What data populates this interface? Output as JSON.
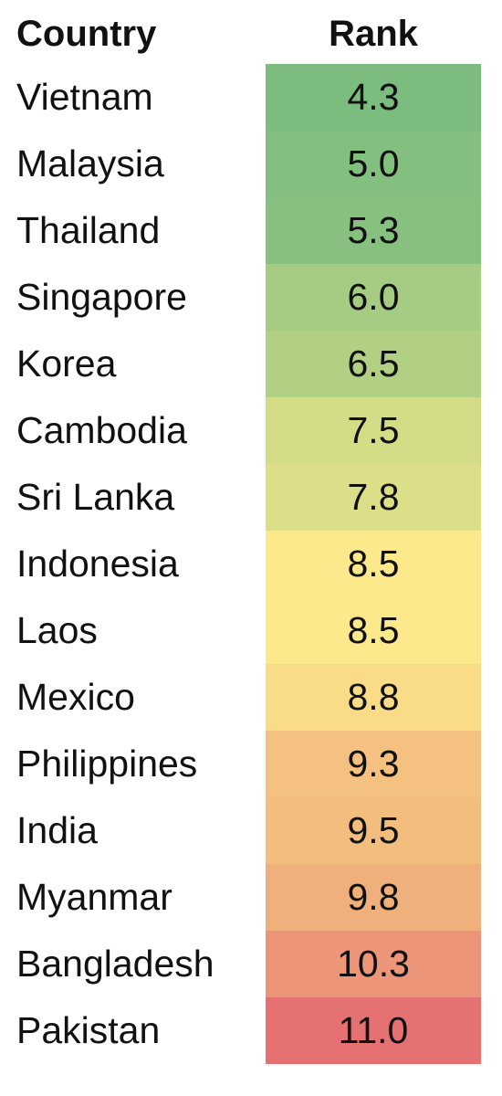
{
  "table": {
    "header": [
      "Country",
      "Rank"
    ],
    "rows": [
      {
        "country": "Vietnam",
        "rank": "4.3",
        "color": "#7cbc7e"
      },
      {
        "country": "Malaysia",
        "rank": "5.0",
        "color": "#83bf7f"
      },
      {
        "country": "Thailand",
        "rank": "5.3",
        "color": "#87c07f"
      },
      {
        "country": "Singapore",
        "rank": "6.0",
        "color": "#a6cb82"
      },
      {
        "country": "Korea",
        "rank": "6.5",
        "color": "#b2d083"
      },
      {
        "country": "Cambodia",
        "rank": "7.5",
        "color": "#d4dc86"
      },
      {
        "country": "Sri Lanka",
        "rank": "7.8",
        "color": "#dcdf87"
      },
      {
        "country": "Indonesia",
        "rank": "8.5",
        "color": "#fbe98b"
      },
      {
        "country": "Laos",
        "rank": "8.5",
        "color": "#fbe98b"
      },
      {
        "country": "Mexico",
        "rank": "8.8",
        "color": "#f9db88"
      },
      {
        "country": "Philippines",
        "rank": "9.3",
        "color": "#f4c180"
      },
      {
        "country": "India",
        "rank": "9.5",
        "color": "#f3bd7e"
      },
      {
        "country": "Myanmar",
        "rank": "9.8",
        "color": "#f0b07c"
      },
      {
        "country": "Bangladesh",
        "rank": "10.3",
        "color": "#ec9578"
      },
      {
        "country": "Pakistan",
        "rank": "11.0",
        "color": "#e57173"
      }
    ]
  }
}
